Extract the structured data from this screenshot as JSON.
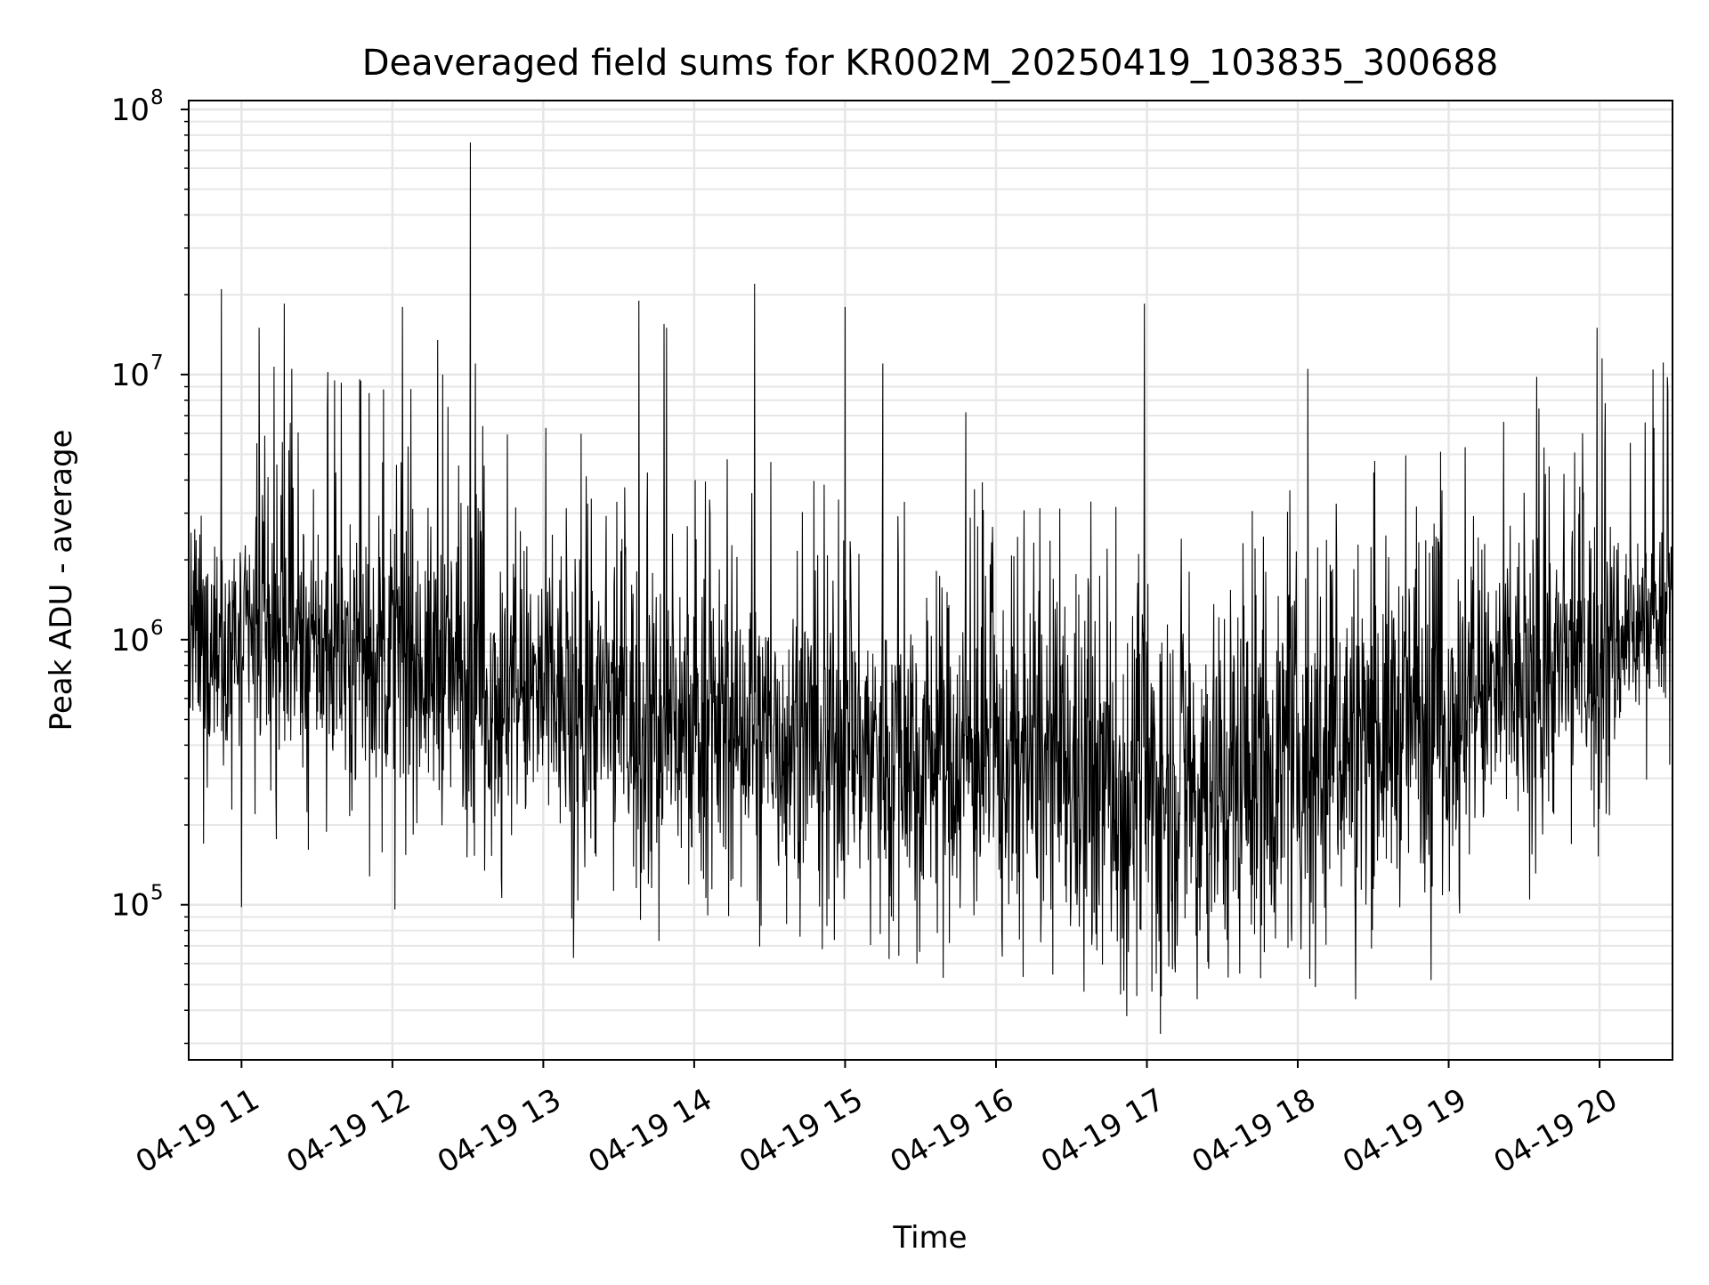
{
  "chart_data": {
    "type": "line",
    "title": "Deaveraged field sums for KR002M_20250419_103835_300688",
    "xlabel": "Time",
    "ylabel": "Peak ADU - average",
    "x_tick_labels": [
      "04-19 11",
      "04-19 12",
      "04-19 13",
      "04-19 14",
      "04-19 15",
      "04-19 16",
      "04-19 17",
      "04-19 18",
      "04-19 19",
      "04-19 20"
    ],
    "y_tick_labels": [
      {
        "base": "10",
        "exp": "5"
      },
      {
        "base": "10",
        "exp": "6"
      },
      {
        "base": "10",
        "exp": "7"
      },
      {
        "base": "10",
        "exp": "8"
      }
    ],
    "yscale": "log",
    "xlim": [
      "2025-04-19 10:39",
      "2025-04-19 20:29"
    ],
    "ylim": [
      26000,
      108000000
    ],
    "grid": true,
    "line_color": "#000000",
    "grid_color": "#e6e6e6",
    "series": [
      {
        "x_start": "2025-04-19 10:39",
        "x_end": "2025-04-19 20:29",
        "envelope_log10": [
          {
            "t": "10:39",
            "y": 6.0,
            "spread": 0.3
          },
          {
            "t": "11:00",
            "y": 6.0,
            "spread": 0.3
          },
          {
            "t": "11:30",
            "y": 5.97,
            "spread": 0.33
          },
          {
            "t": "12:00",
            "y": 5.95,
            "spread": 0.35
          },
          {
            "t": "12:30",
            "y": 5.85,
            "spread": 0.38
          },
          {
            "t": "13:00",
            "y": 5.78,
            "spread": 0.4
          },
          {
            "t": "13:30",
            "y": 5.72,
            "spread": 0.4
          },
          {
            "t": "14:00",
            "y": 5.68,
            "spread": 0.4
          },
          {
            "t": "14:30",
            "y": 5.65,
            "spread": 0.4
          },
          {
            "t": "15:00",
            "y": 5.62,
            "spread": 0.4
          },
          {
            "t": "15:30",
            "y": 5.58,
            "spread": 0.42
          },
          {
            "t": "16:00",
            "y": 5.55,
            "spread": 0.45
          },
          {
            "t": "16:30",
            "y": 5.48,
            "spread": 0.48
          },
          {
            "t": "17:00",
            "y": 5.45,
            "spread": 0.5
          },
          {
            "t": "17:30",
            "y": 5.48,
            "spread": 0.5
          },
          {
            "t": "18:00",
            "y": 5.55,
            "spread": 0.48
          },
          {
            "t": "18:30",
            "y": 5.65,
            "spread": 0.45
          },
          {
            "t": "19:00",
            "y": 5.75,
            "spread": 0.42
          },
          {
            "t": "19:30",
            "y": 5.82,
            "spread": 0.4
          },
          {
            "t": "20:00",
            "y": 5.95,
            "spread": 0.35
          },
          {
            "t": "20:29",
            "y": 6.15,
            "spread": 0.18
          }
        ],
        "peaks": [
          {
            "t": "10:52",
            "y": 21000000
          },
          {
            "t": "11:07",
            "y": 15000000
          },
          {
            "t": "11:17",
            "y": 18500000
          },
          {
            "t": "11:20",
            "y": 10500000
          },
          {
            "t": "11:37",
            "y": 9500000
          },
          {
            "t": "11:47",
            "y": 9600000
          },
          {
            "t": "12:04",
            "y": 18000000
          },
          {
            "t": "12:18",
            "y": 13500000
          },
          {
            "t": "12:20",
            "y": 10000000
          },
          {
            "t": "12:31",
            "y": 75000000
          },
          {
            "t": "12:33",
            "y": 11000000
          },
          {
            "t": "13:38",
            "y": 19000000
          },
          {
            "t": "13:48",
            "y": 15500000
          },
          {
            "t": "13:49",
            "y": 15000000
          },
          {
            "t": "14:24",
            "y": 22000000
          },
          {
            "t": "15:00",
            "y": 18000000
          },
          {
            "t": "15:15",
            "y": 11000000
          },
          {
            "t": "15:48",
            "y": 7200000
          },
          {
            "t": "16:59",
            "y": 18500000
          },
          {
            "t": "18:04",
            "y": 10500000
          },
          {
            "t": "19:35",
            "y": 9800000
          },
          {
            "t": "19:59",
            "y": 15000000
          },
          {
            "t": "20:01",
            "y": 11500000
          }
        ],
        "troughs": [
          {
            "t": "11:00",
            "y": 98000
          },
          {
            "t": "12:01",
            "y": 96000
          },
          {
            "t": "13:12",
            "y": 63000
          },
          {
            "t": "13:46",
            "y": 73000
          },
          {
            "t": "15:39",
            "y": 53000
          },
          {
            "t": "16:35",
            "y": 47000
          },
          {
            "t": "16:52",
            "y": 38000
          },
          {
            "t": "17:02",
            "y": 47000
          },
          {
            "t": "17:20",
            "y": 44000
          },
          {
            "t": "18:07",
            "y": 49000
          },
          {
            "t": "18:23",
            "y": 44000
          },
          {
            "t": "18:53",
            "y": 52000
          }
        ]
      }
    ]
  }
}
